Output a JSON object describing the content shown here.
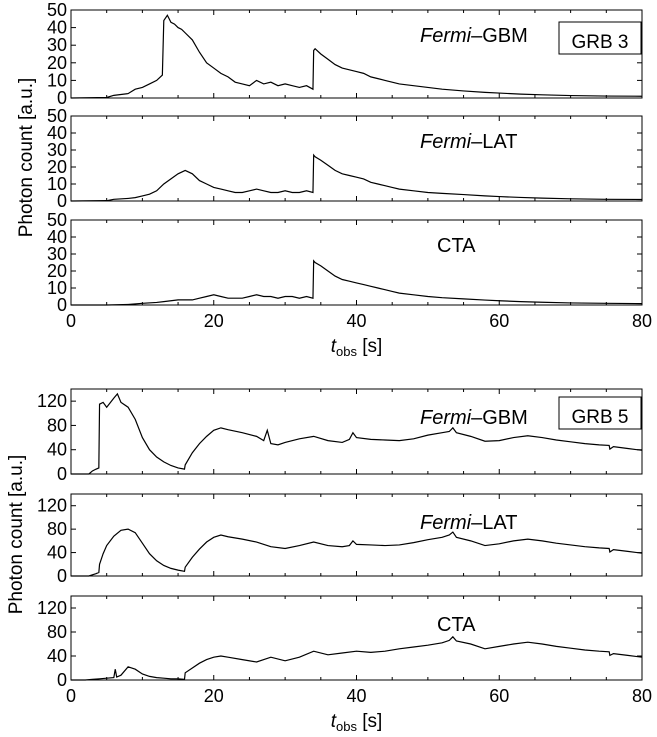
{
  "chart_data": [
    {
      "type": "line",
      "title": "",
      "box_label": "GRB 3",
      "xlabel_main": "t",
      "xlabel_sub": "obs",
      "xlabel_unit": " [s]",
      "ylabel": "Photon count [a.u.]",
      "xlim": [
        0,
        80
      ],
      "ylim": [
        0,
        50
      ],
      "xticks": [
        "0",
        "20",
        "40",
        "60",
        "80"
      ],
      "yticks": [
        "0",
        "10",
        "20",
        "30",
        "40",
        "50"
      ],
      "panels": [
        {
          "label_italic": "Fermi",
          "label_rest": "–GBM",
          "x": [
            0,
            5,
            6,
            8,
            9,
            10,
            11,
            12,
            12.8,
            13,
            13.5,
            14,
            14.5,
            15,
            15.5,
            16,
            17,
            18,
            19,
            20,
            21,
            22,
            23,
            24,
            25,
            26,
            27,
            28,
            29,
            30,
            31,
            32,
            33,
            33.9,
            34.0,
            34.2,
            35,
            36,
            37,
            38,
            39,
            40,
            41,
            42,
            43,
            44,
            45,
            46,
            48,
            50,
            52,
            55,
            58,
            60,
            63,
            66,
            70,
            75,
            80
          ],
          "values": [
            0,
            0.3,
            1.5,
            2.5,
            5,
            6,
            8,
            10,
            13,
            44,
            47,
            43,
            42,
            40,
            39,
            37,
            33,
            26,
            20,
            17,
            14,
            12,
            9,
            8,
            7,
            10,
            8,
            9,
            7,
            8,
            7,
            6,
            7,
            5,
            27,
            28,
            25,
            22,
            19,
            17,
            16,
            15,
            14,
            12,
            11,
            10,
            9,
            8,
            7,
            6,
            5,
            4,
            3.2,
            2.8,
            2.2,
            1.8,
            1.4,
            1.1,
            1.0
          ]
        },
        {
          "label_italic": "Fermi",
          "label_rest": "–LAT",
          "x": [
            0,
            5,
            6,
            8,
            9,
            10,
            11,
            12,
            13,
            14,
            15,
            16,
            17,
            18,
            19,
            20,
            21,
            22,
            23,
            24,
            25,
            26,
            27,
            28,
            29,
            30,
            31,
            32,
            33,
            33.9,
            34.0,
            34.2,
            35,
            36,
            37,
            38,
            39,
            40,
            41,
            42,
            43,
            44,
            45,
            46,
            48,
            50,
            52,
            55,
            58,
            60,
            63,
            66,
            70,
            75,
            80
          ],
          "values": [
            0,
            0.2,
            1,
            1.5,
            2,
            3,
            4,
            6,
            10,
            13,
            16,
            18,
            16,
            12,
            10,
            8,
            7,
            6,
            5,
            5,
            6,
            7,
            6,
            5,
            5,
            6,
            5,
            5,
            6,
            5,
            27,
            26,
            24,
            21,
            18,
            16,
            15,
            14,
            13,
            11,
            10,
            9,
            8,
            7,
            6,
            5,
            4.5,
            3.8,
            3.0,
            2.6,
            2.1,
            1.7,
            1.3,
            1.0,
            0.9
          ]
        },
        {
          "label_italic": "",
          "label_rest": "CTA",
          "x": [
            0,
            5,
            8,
            10,
            12,
            13,
            14,
            15,
            16,
            17,
            18,
            19,
            20,
            21,
            22,
            23,
            24,
            25,
            26,
            27,
            28,
            29,
            30,
            31,
            32,
            33,
            33.9,
            34.0,
            34.2,
            35,
            36,
            37,
            38,
            39,
            40,
            41,
            42,
            43,
            44,
            45,
            46,
            48,
            50,
            52,
            55,
            58,
            60,
            63,
            66,
            70,
            75,
            80
          ],
          "values": [
            0,
            0,
            0.3,
            1,
            1.5,
            2,
            2.5,
            3,
            3,
            3,
            4,
            5,
            6,
            5,
            4,
            4,
            4,
            5,
            6,
            5,
            5,
            4,
            5,
            5,
            4,
            5,
            4,
            26,
            25,
            23,
            20,
            17,
            15,
            14,
            13,
            12,
            11,
            10,
            9,
            8,
            7,
            6,
            5,
            4.3,
            3.6,
            2.9,
            2.5,
            2.0,
            1.6,
            1.2,
            1.0,
            0.8
          ]
        }
      ]
    },
    {
      "type": "line",
      "title": "",
      "box_label": "GRB 5",
      "xlabel_main": "t",
      "xlabel_sub": "obs",
      "xlabel_unit": " [s]",
      "ylabel": "Photon count [a.u.]",
      "xlim": [
        0,
        80
      ],
      "ylim": [
        0,
        140
      ],
      "xticks": [
        "0",
        "20",
        "40",
        "60",
        "80"
      ],
      "yticks": [
        "0",
        "40",
        "80",
        "120"
      ],
      "panels": [
        {
          "label_italic": "Fermi",
          "label_rest": "–GBM",
          "x": [
            0,
            2.5,
            3,
            3.5,
            3.9,
            4.0,
            4.5,
            5,
            6,
            6.5,
            7,
            8,
            9,
            10,
            11,
            12,
            13,
            14,
            15,
            15.9,
            16.0,
            17,
            18,
            19,
            20,
            21,
            22,
            24,
            26,
            27,
            27.5,
            28,
            29,
            30,
            32,
            34,
            36,
            38,
            39,
            39.5,
            40,
            42,
            44,
            46,
            48,
            50,
            52,
            53,
            53.5,
            54,
            56,
            58,
            60,
            62,
            64,
            66,
            68,
            70,
            72,
            74,
            75.4,
            75.5,
            76,
            78,
            80
          ],
          "values": [
            0,
            0,
            5,
            8,
            10,
            115,
            118,
            110,
            125,
            132,
            118,
            110,
            90,
            60,
            40,
            28,
            20,
            14,
            10,
            8,
            15,
            35,
            50,
            62,
            72,
            76,
            73,
            68,
            62,
            55,
            72,
            50,
            48,
            52,
            58,
            62,
            55,
            52,
            57,
            68,
            60,
            57,
            56,
            55,
            58,
            64,
            68,
            70,
            76,
            68,
            62,
            54,
            55,
            60,
            63,
            60,
            56,
            53,
            50,
            48,
            47,
            41,
            45,
            42,
            39
          ]
        },
        {
          "label_italic": "Fermi",
          "label_rest": "–LAT",
          "x": [
            0,
            2.5,
            3,
            3.5,
            3.9,
            4.0,
            4.5,
            5,
            6,
            7,
            8,
            9,
            10,
            11,
            12,
            13,
            14,
            15,
            15.9,
            16.0,
            17,
            18,
            19,
            20,
            21,
            22,
            24,
            26,
            28,
            30,
            32,
            34,
            36,
            38,
            39,
            39.5,
            40,
            42,
            44,
            46,
            48,
            50,
            52,
            53,
            53.5,
            54,
            56,
            58,
            60,
            62,
            64,
            66,
            68,
            70,
            72,
            74,
            75.4,
            75.5,
            76,
            78,
            80
          ],
          "values": [
            0,
            0,
            2,
            4,
            6,
            20,
            38,
            52,
            68,
            78,
            80,
            74,
            56,
            38,
            26,
            18,
            13,
            10,
            8,
            15,
            32,
            46,
            58,
            66,
            70,
            67,
            63,
            58,
            50,
            47,
            52,
            58,
            52,
            50,
            52,
            60,
            54,
            53,
            52,
            53,
            57,
            62,
            66,
            70,
            75,
            66,
            60,
            52,
            55,
            60,
            63,
            60,
            56,
            53,
            50,
            48,
            47,
            41,
            45,
            42,
            39
          ]
        },
        {
          "label_italic": "",
          "label_rest": "CTA",
          "x": [
            0,
            2,
            3,
            4,
            5,
            6,
            6.2,
            6.4,
            7,
            8,
            9,
            10,
            11,
            12,
            13,
            14,
            15,
            15.9,
            16.0,
            17,
            18,
            19,
            20,
            21,
            22,
            24,
            26,
            28,
            30,
            32,
            34,
            36,
            38,
            40,
            42,
            44,
            46,
            48,
            50,
            52,
            53,
            53.5,
            54,
            56,
            58,
            60,
            62,
            64,
            66,
            68,
            70,
            72,
            74,
            75.4,
            75.5,
            76,
            78,
            80
          ],
          "values": [
            0,
            0,
            1,
            2,
            3,
            4,
            18,
            5,
            8,
            22,
            18,
            10,
            6,
            4,
            3,
            2,
            2,
            1,
            12,
            20,
            28,
            34,
            38,
            40,
            38,
            34,
            30,
            38,
            32,
            38,
            48,
            42,
            45,
            48,
            46,
            48,
            52,
            55,
            58,
            62,
            66,
            72,
            65,
            60,
            52,
            56,
            60,
            63,
            60,
            56,
            53,
            50,
            48,
            47,
            41,
            44,
            41,
            38
          ]
        }
      ]
    }
  ]
}
